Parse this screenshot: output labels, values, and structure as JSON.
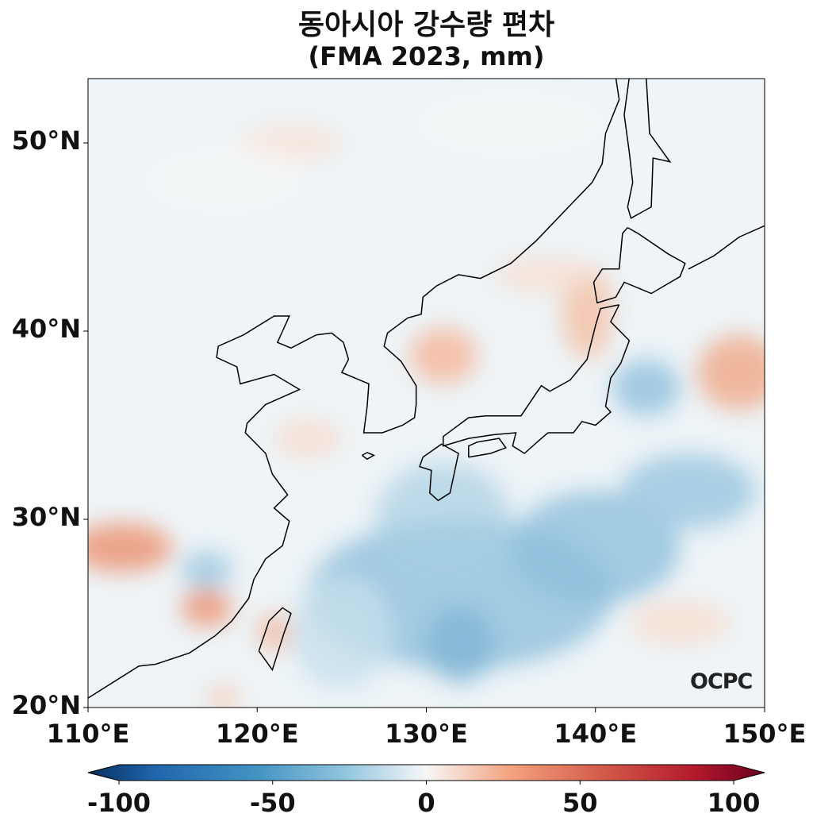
{
  "title": {
    "line1": "동아시아 강수량 편차",
    "line2": "(FMA 2023, mm)"
  },
  "map": {
    "lon_range": [
      110,
      150
    ],
    "lat_range": [
      20,
      53.4
    ],
    "lat_ticks": [
      {
        "value": 50,
        "label": "50°N"
      },
      {
        "value": 40,
        "label": "40°N"
      },
      {
        "value": 30,
        "label": "30°N"
      },
      {
        "value": 20,
        "label": "20°N"
      }
    ],
    "lon_ticks": [
      {
        "value": 110,
        "label": "110°E"
      },
      {
        "value": 120,
        "label": "120°E"
      },
      {
        "value": 130,
        "label": "130°E"
      },
      {
        "value": 140,
        "label": "140°E"
      },
      {
        "value": 150,
        "label": "150°E"
      }
    ],
    "logo": "OCPC"
  },
  "colorbar": {
    "range": [
      -100,
      100
    ],
    "extend": "both",
    "colormap": "RdBu_r",
    "ticks": [
      {
        "value": -100,
        "label": "-100"
      },
      {
        "value": -50,
        "label": "-50"
      },
      {
        "value": 0,
        "label": "0"
      },
      {
        "value": 50,
        "label": "50"
      },
      {
        "value": 100,
        "label": "100"
      }
    ]
  }
}
